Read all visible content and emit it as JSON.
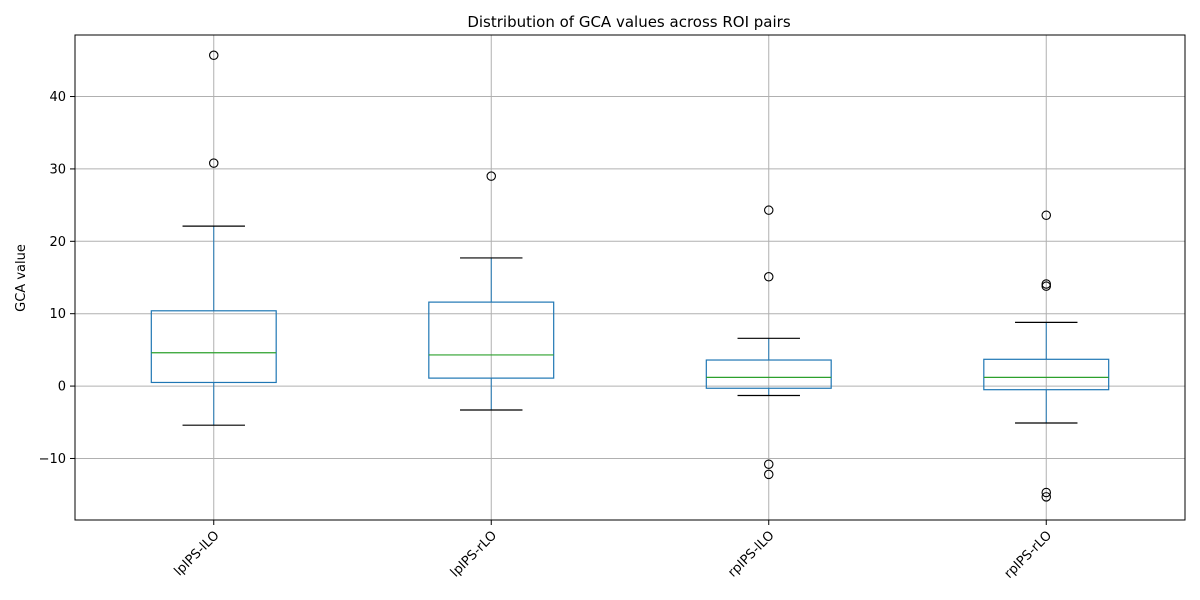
{
  "chart_data": {
    "type": "box",
    "title": "Distribution of GCA values across ROI pairs",
    "xlabel": "",
    "ylabel": "GCA value",
    "ylim": [
      -18.5,
      48.5
    ],
    "yticks": [
      -10,
      0,
      10,
      20,
      30,
      40
    ],
    "grid": true,
    "categories": [
      "lpIPS-lLO",
      "lpIPS-rLO",
      "rpIPS-lLO",
      "rpIPS-rLO"
    ],
    "boxes": [
      {
        "category": "lpIPS-lLO",
        "whisker_low": -5.4,
        "q1": 0.5,
        "median": 4.6,
        "q3": 10.4,
        "whisker_high": 22.1,
        "outliers": [
          45.7,
          30.8
        ]
      },
      {
        "category": "lpIPS-rLO",
        "whisker_low": -3.3,
        "q1": 1.1,
        "median": 4.3,
        "q3": 11.6,
        "whisker_high": 17.7,
        "outliers": [
          29.0
        ]
      },
      {
        "category": "rpIPS-lLO",
        "whisker_low": -1.3,
        "q1": -0.3,
        "median": 1.2,
        "q3": 3.6,
        "whisker_high": 6.6,
        "outliers": [
          24.3,
          15.1,
          -10.8,
          -12.2
        ]
      },
      {
        "category": "rpIPS-rLO",
        "whisker_low": -5.1,
        "q1": -0.5,
        "median": 1.2,
        "q3": 3.7,
        "whisker_high": 8.8,
        "outliers": [
          23.6,
          14.1,
          13.8,
          -14.7,
          -15.3
        ]
      }
    ],
    "colors": {
      "box": "#1f77b4",
      "median": "#2ca02c",
      "whisker": "#000000",
      "grid": "#b0b0b0"
    }
  }
}
